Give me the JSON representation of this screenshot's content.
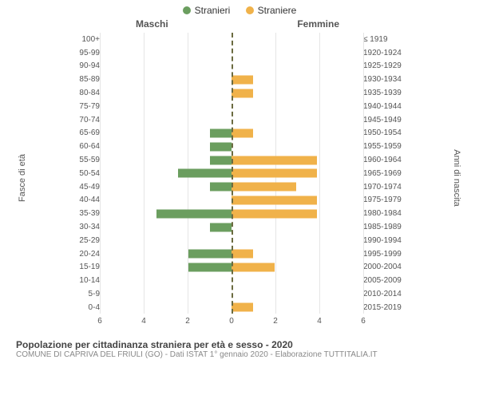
{
  "chart": {
    "type": "population-pyramid",
    "legend": [
      {
        "label": "Stranieri",
        "color": "#6b9e5f"
      },
      {
        "label": "Straniere",
        "color": "#f0b24a"
      }
    ],
    "column_headers": {
      "left": "Maschi",
      "right": "Femmine"
    },
    "y_axis_left_label": "Fasce di età",
    "y_axis_right_label": "Anni di nascita",
    "x_max": 6,
    "x_ticks": [
      6,
      4,
      2,
      0,
      2,
      4,
      6
    ],
    "grid_color": "#e5e5e5",
    "center_line_color": "#6b6b40",
    "bar_colors": {
      "male": "#6b9e5f",
      "female": "#f0b24a"
    },
    "background_color": "#ffffff",
    "rows": [
      {
        "age": "100+",
        "birth": "≤ 1919",
        "m": 0,
        "f": 0
      },
      {
        "age": "95-99",
        "birth": "1920-1924",
        "m": 0,
        "f": 0
      },
      {
        "age": "90-94",
        "birth": "1925-1929",
        "m": 0,
        "f": 0
      },
      {
        "age": "85-89",
        "birth": "1930-1934",
        "m": 0,
        "f": 1
      },
      {
        "age": "80-84",
        "birth": "1935-1939",
        "m": 0,
        "f": 1
      },
      {
        "age": "75-79",
        "birth": "1940-1944",
        "m": 0,
        "f": 0
      },
      {
        "age": "70-74",
        "birth": "1945-1949",
        "m": 0,
        "f": 0
      },
      {
        "age": "65-69",
        "birth": "1950-1954",
        "m": 1,
        "f": 1
      },
      {
        "age": "60-64",
        "birth": "1955-1959",
        "m": 1,
        "f": 0
      },
      {
        "age": "55-59",
        "birth": "1960-1964",
        "m": 1,
        "f": 4
      },
      {
        "age": "50-54",
        "birth": "1965-1969",
        "m": 2.5,
        "f": 4
      },
      {
        "age": "45-49",
        "birth": "1970-1974",
        "m": 1,
        "f": 3
      },
      {
        "age": "40-44",
        "birth": "1975-1979",
        "m": 0,
        "f": 4
      },
      {
        "age": "35-39",
        "birth": "1980-1984",
        "m": 3.5,
        "f": 4
      },
      {
        "age": "30-34",
        "birth": "1985-1989",
        "m": 1,
        "f": 0
      },
      {
        "age": "25-29",
        "birth": "1990-1994",
        "m": 0,
        "f": 0
      },
      {
        "age": "20-24",
        "birth": "1995-1999",
        "m": 2,
        "f": 1
      },
      {
        "age": "15-19",
        "birth": "2000-2004",
        "m": 2,
        "f": 2
      },
      {
        "age": "10-14",
        "birth": "2005-2009",
        "m": 0,
        "f": 0
      },
      {
        "age": "5-9",
        "birth": "2010-2014",
        "m": 0,
        "f": 0
      },
      {
        "age": "0-4",
        "birth": "2015-2019",
        "m": 0,
        "f": 1
      }
    ],
    "caption_title": "Popolazione per cittadinanza straniera per età e sesso - 2020",
    "caption_sub": "COMUNE DI CAPRIVA DEL FRIULI (GO) - Dati ISTAT 1° gennaio 2020 - Elaborazione TUTTITALIA.IT"
  }
}
